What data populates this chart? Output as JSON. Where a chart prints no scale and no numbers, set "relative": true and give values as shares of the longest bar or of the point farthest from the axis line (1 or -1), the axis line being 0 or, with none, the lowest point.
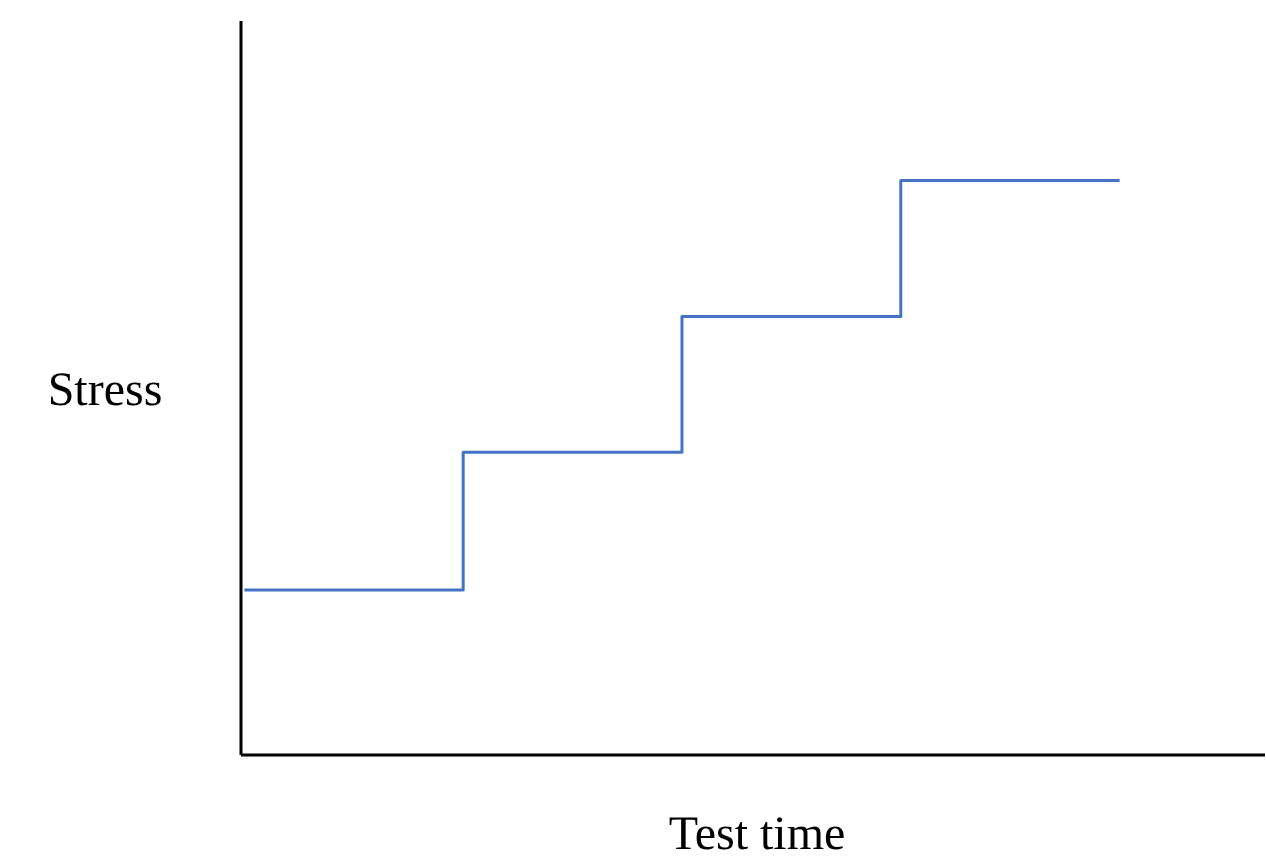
{
  "chart_data": {
    "type": "step",
    "relative": true,
    "xlabel": "Test time",
    "ylabel": "Stress",
    "categories": [
      null,
      null,
      null,
      null,
      null
    ],
    "series": [
      {
        "color": "#4472c4",
        "values": [
          0.286,
          0.526,
          0.763,
          1,
          1
        ]
      }
    ],
    "grid": false,
    "tick_labels": false
  }
}
